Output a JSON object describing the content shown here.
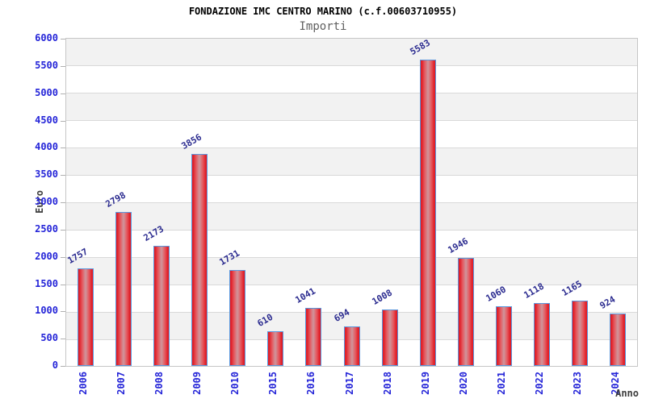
{
  "chart_data": {
    "type": "bar",
    "title": "FONDAZIONE IMC CENTRO MARINO (c.f.00603710955)",
    "subtitle": "Importi",
    "xlabel": "Anno",
    "ylabel": "Euro",
    "categories": [
      "2006",
      "2007",
      "2008",
      "2009",
      "2010",
      "2015",
      "2016",
      "2017",
      "2018",
      "2019",
      "2020",
      "2021",
      "2022",
      "2023",
      "2024"
    ],
    "values": [
      1757,
      2798,
      2173,
      3856,
      1731,
      610,
      1041,
      694,
      1008,
      5583,
      1946,
      1060,
      1118,
      1165,
      924
    ],
    "ylim": [
      0,
      6000
    ],
    "ytick_step": 500,
    "yticks": [
      0,
      500,
      1000,
      1500,
      2000,
      2500,
      3000,
      3500,
      4000,
      4500,
      5000,
      5500,
      6000
    ],
    "grid": "horizontal alternating bands, gridline every 500",
    "legend": null,
    "bar_value_labels_rotation_deg": -30,
    "x_tick_rotation_deg": -90,
    "colors": {
      "bar_edge_red": "#e01f28",
      "bar_mid": "#e5595f",
      "bar_center": "#cf959c",
      "bar_border_blue": "#5a96dc",
      "tick_label_blue": "#2525d8",
      "value_label_navy": "#2c2c90",
      "band_gray": "#f2f2f2",
      "gridline_gray": "#d9d9d9",
      "title_color": "#000000",
      "subtitle_color": "#5f5f5f",
      "axis_title_color": "#3d3d3d"
    }
  }
}
